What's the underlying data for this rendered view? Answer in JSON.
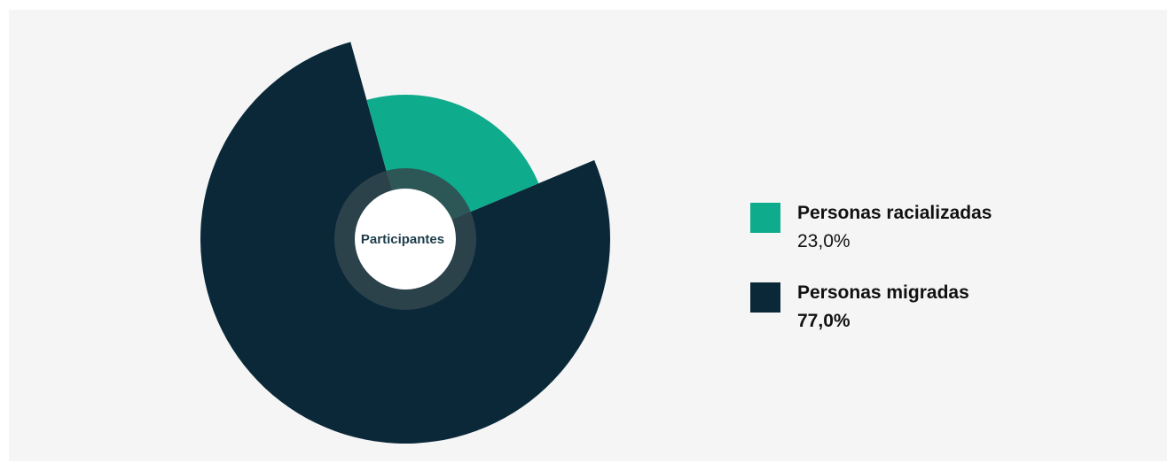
{
  "chart_data": {
    "type": "pie",
    "center_label": "Participantes",
    "series": [
      {
        "name": "Personas racializadas",
        "value": 23.0,
        "label": "23,0%",
        "color": "#0eab8c"
      },
      {
        "name": "Personas migradas",
        "value": 77.0,
        "label": "77,0%",
        "color": "#0b2839"
      }
    ],
    "legend_position": "right"
  },
  "colors": {
    "background": "#f5f5f5",
    "center_ring": "#33474e",
    "center_text": "#1d3d4b"
  }
}
